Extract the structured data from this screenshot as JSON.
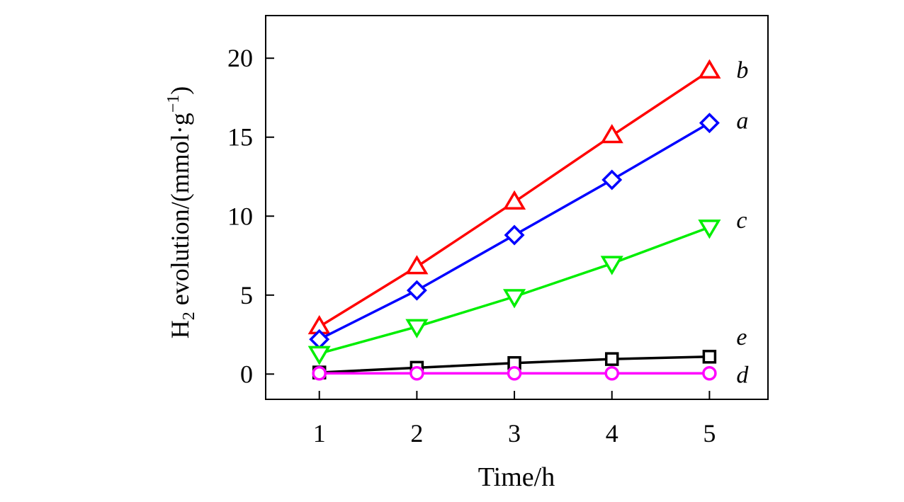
{
  "chart_data": {
    "type": "line",
    "title": "",
    "xlabel": "Time/h",
    "ylabel_main": "H",
    "ylabel_sub": "2",
    "ylabel_mid": " evolution/(mmol·g",
    "ylabel_sup": "−1",
    "ylabel_end": ")",
    "xlim": [
      0.45,
      5.6
    ],
    "ylim": [
      -1.6,
      22.7
    ],
    "x": [
      1,
      2,
      3,
      4,
      5
    ],
    "xticks": [
      1,
      2,
      3,
      4,
      5
    ],
    "yticks": [
      0,
      5,
      10,
      15,
      20
    ],
    "xtick_labels": [
      "1",
      "2",
      "3",
      "4",
      "5"
    ],
    "ytick_labels": [
      "0",
      "5",
      "10",
      "15",
      "20"
    ],
    "grid": false,
    "series": [
      {
        "name": "b",
        "color": "#ff0000",
        "marker": "triangle-up",
        "values": [
          3.0,
          6.8,
          10.9,
          15.1,
          19.2
        ]
      },
      {
        "name": "a",
        "color": "#0000ff",
        "marker": "diamond",
        "values": [
          2.2,
          5.3,
          8.8,
          12.3,
          15.9
        ]
      },
      {
        "name": "c",
        "color": "#00ee00",
        "marker": "triangle-down",
        "values": [
          1.3,
          3.0,
          4.9,
          7.0,
          9.3
        ]
      },
      {
        "name": "e",
        "color": "#000000",
        "marker": "square",
        "values": [
          0.1,
          0.4,
          0.7,
          0.95,
          1.1
        ]
      },
      {
        "name": "d",
        "color": "#ff00ff",
        "marker": "circle",
        "values": [
          0.05,
          0.05,
          0.05,
          0.05,
          0.05
        ]
      }
    ],
    "series_labels": [
      {
        "text": "b",
        "y": 19.2
      },
      {
        "text": "a",
        "y": 16.0
      },
      {
        "text": "c",
        "y": 9.7
      },
      {
        "text": "e",
        "y": 2.3
      },
      {
        "text": "d",
        "y": -0.1
      }
    ]
  }
}
